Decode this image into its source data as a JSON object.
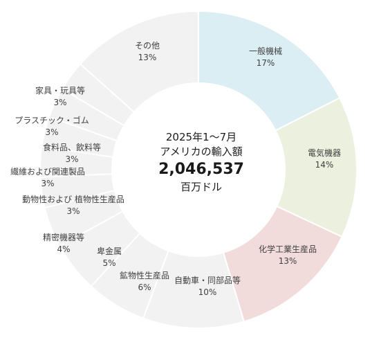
{
  "chart_data": {
    "type": "pie",
    "variant": "donut",
    "center_text": {
      "line1": "2025年1〜7月",
      "line2": "アメリカの輸入額",
      "value": "2,046,537",
      "unit": "百万ドル"
    },
    "slices": [
      {
        "label": "一般機械",
        "value": 17,
        "display": "17%",
        "color": "#daeef3"
      },
      {
        "label": "電気機器",
        "value": 14,
        "display": "14%",
        "color": "#ebf1de"
      },
      {
        "label": "化学工業生産品",
        "value": 13,
        "display": "13%",
        "color": "#f2dcdb"
      },
      {
        "label": "自動車・同部品等",
        "value": 10,
        "display": "10%",
        "color": "#f2f2f2"
      },
      {
        "label": "鉱物性生産品",
        "value": 6,
        "display": "6%",
        "color": "#f2f2f2"
      },
      {
        "label": "卑金属",
        "value": 5,
        "display": "5%",
        "color": "#f2f2f2"
      },
      {
        "label": "精密機器等",
        "value": 4,
        "display": "4%",
        "color": "#f2f2f2"
      },
      {
        "label": "動物性および 植物性生産品",
        "value": 3,
        "display": "3%",
        "color": "#f2f2f2"
      },
      {
        "label": "繊維および関連製品",
        "value": 3,
        "display": "3%",
        "color": "#f2f2f2"
      },
      {
        "label": "食料品、飲料等",
        "value": 3,
        "display": "3%",
        "color": "#f2f2f2"
      },
      {
        "label": "プラスチック・ゴム",
        "value": 3,
        "display": "3%",
        "color": "#f2f2f2"
      },
      {
        "label": "家具・玩具等",
        "value": 3,
        "display": "3%",
        "color": "#f2f2f2"
      },
      {
        "label": "その他",
        "value": 13,
        "display": "13%",
        "color": "#f2f2f2"
      }
    ]
  }
}
